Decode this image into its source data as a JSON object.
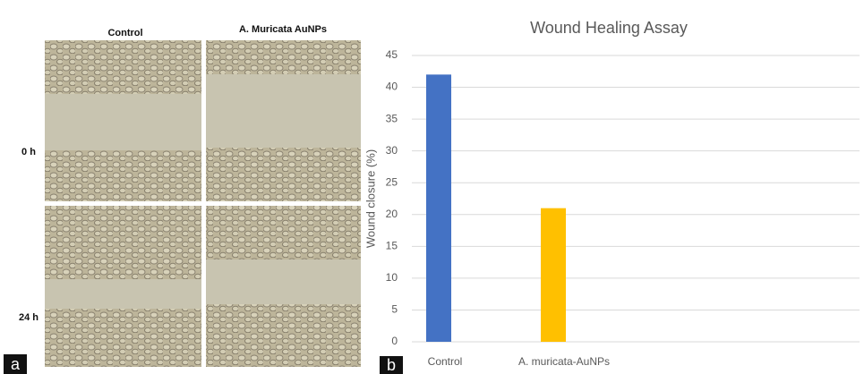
{
  "panel_a": {
    "columns": [
      "Control",
      "A. Muricata AuNPs"
    ],
    "rows": [
      "0 h",
      "24 h"
    ],
    "label": "a"
  },
  "chart_data": {
    "type": "bar",
    "title": "Wound Healing Assay",
    "ylabel": "Wound closure (%)",
    "categories": [
      "Control",
      "A. muricata-AuNPs"
    ],
    "values": [
      42,
      21
    ],
    "colors": [
      "#4472c4",
      "#ffc000"
    ],
    "ylim": [
      0,
      45
    ],
    "yticks": [
      0,
      5,
      10,
      15,
      20,
      25,
      30,
      35,
      40,
      45
    ],
    "grid": true,
    "label": "b"
  }
}
